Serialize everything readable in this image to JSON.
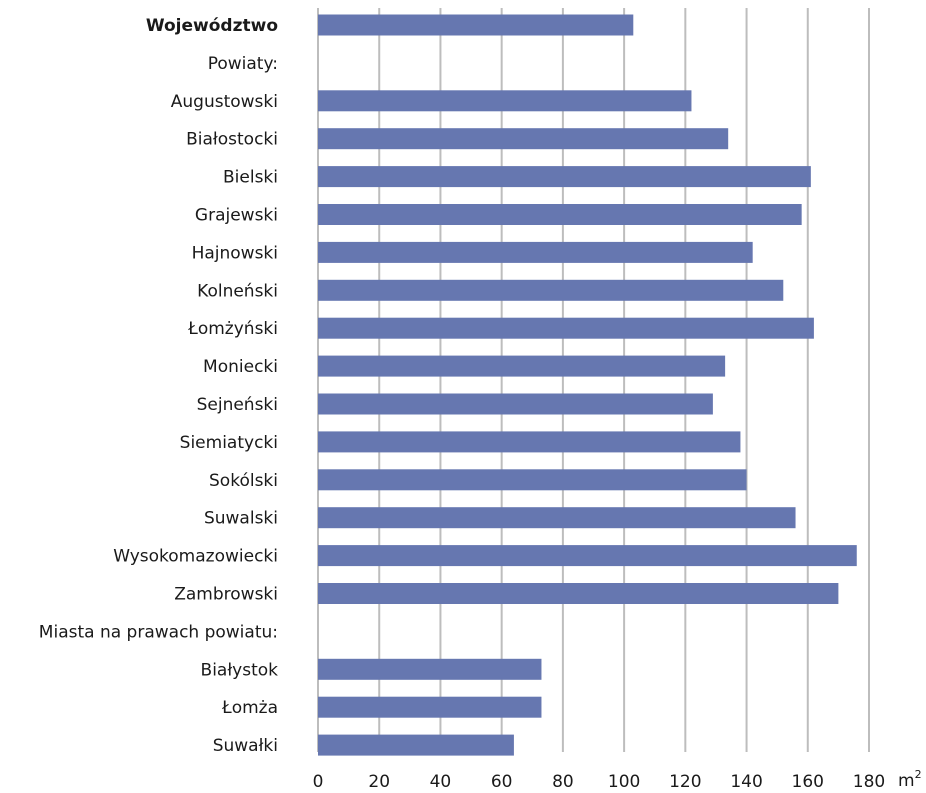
{
  "chart_data": {
    "type": "bar",
    "orientation": "horizontal",
    "categories": [
      "Województwo",
      "Powiaty:",
      "Augustowski",
      "Białostocki",
      "Bielski",
      "Grajewski",
      "Hajnowski",
      "Kolneński",
      "Łomżyński",
      "Moniecki",
      "Sejneński",
      "Siemiatycki",
      "Sokólski",
      "Suwalski",
      "Wysokomazowiecki",
      "Zambrowski",
      "Miasta na prawach powiatu:",
      "Białystok",
      "Łomża",
      "Suwałki"
    ],
    "bold_categories": [
      "Województwo"
    ],
    "values": [
      103,
      null,
      122,
      134,
      161,
      158,
      142,
      152,
      162,
      133,
      129,
      138,
      140,
      156,
      176,
      170,
      null,
      73,
      73,
      64
    ],
    "xlim": [
      0,
      180
    ],
    "xticks": [
      "0",
      "20",
      "40",
      "60",
      "80",
      "100",
      "120",
      "140",
      "160",
      "180"
    ],
    "xunit": "m",
    "xunit_sup": "2",
    "grid": "vertical",
    "bar_color": "#6677b0"
  }
}
